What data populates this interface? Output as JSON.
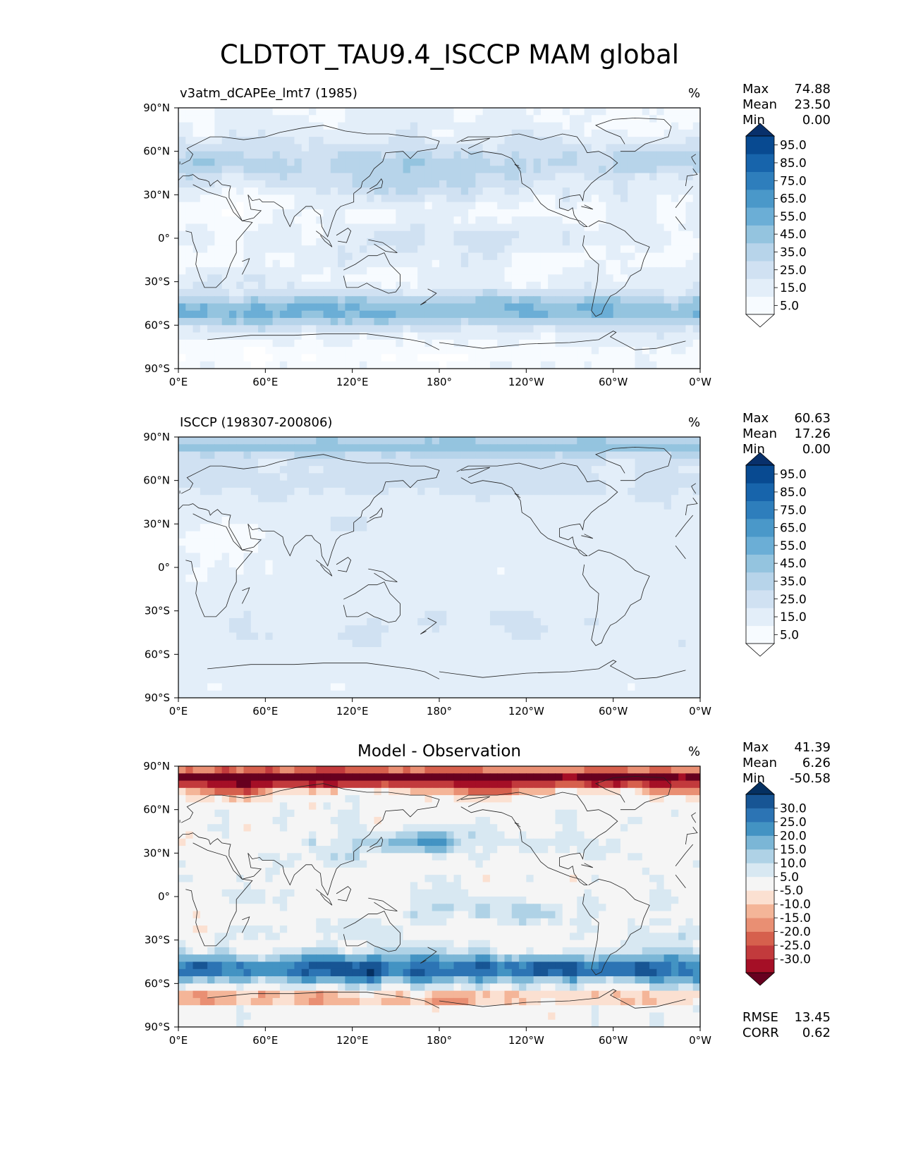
{
  "title": "CLDTOT_TAU9.4_ISCCP MAM global",
  "chart_data": [
    {
      "type": "heatmap",
      "left_title": "v3atm_dCAPEe_lmt7 (1985)",
      "units": "%",
      "xticks": [
        "0°E",
        "60°E",
        "120°E",
        "180°",
        "120°W",
        "60°W",
        "0°W"
      ],
      "yticks": [
        "90°N",
        "60°N",
        "30°N",
        "0°",
        "30°S",
        "60°S",
        "90°S"
      ],
      "xlim": [
        0,
        360
      ],
      "ylim": [
        -90,
        90
      ],
      "stats": [
        {
          "label": "Max",
          "value": "74.88"
        },
        {
          "label": "Mean",
          "value": "23.50"
        },
        {
          "label": "Min",
          "value": "0.00"
        }
      ],
      "colorbar": {
        "colormap": "Blues",
        "extend": "both",
        "levels": [
          0,
          10,
          20,
          30,
          40,
          50,
          60,
          70,
          80,
          90,
          100
        ],
        "tick_labels": [
          "5.0",
          "15.0",
          "25.0",
          "35.0",
          "45.0",
          "55.0",
          "65.0",
          "75.0",
          "85.0",
          "95.0"
        ],
        "colors": [
          "#f7fbff",
          "#e3eef9",
          "#d0e1f2",
          "#b7d4ea",
          "#94c4df",
          "#6baed6",
          "#4a98c9",
          "#2e7ebc",
          "#1764ab",
          "#084a91"
        ],
        "under_color": "#ffffff",
        "over_color": "#08306b"
      }
    },
    {
      "type": "heatmap",
      "left_title": "ISCCP (198307-200806)",
      "units": "%",
      "xticks": [
        "0°E",
        "60°E",
        "120°E",
        "180°",
        "120°W",
        "60°W",
        "0°W"
      ],
      "yticks": [
        "90°N",
        "60°N",
        "30°N",
        "0°",
        "30°S",
        "60°S",
        "90°S"
      ],
      "xlim": [
        0,
        360
      ],
      "ylim": [
        -90,
        90
      ],
      "stats": [
        {
          "label": "Max",
          "value": "60.63"
        },
        {
          "label": "Mean",
          "value": "17.26"
        },
        {
          "label": "Min",
          "value": "0.00"
        }
      ],
      "colorbar": {
        "colormap": "Blues",
        "extend": "both",
        "levels": [
          0,
          10,
          20,
          30,
          40,
          50,
          60,
          70,
          80,
          90,
          100
        ],
        "tick_labels": [
          "5.0",
          "15.0",
          "25.0",
          "35.0",
          "45.0",
          "55.0",
          "65.0",
          "75.0",
          "85.0",
          "95.0"
        ],
        "colors": [
          "#f7fbff",
          "#e3eef9",
          "#d0e1f2",
          "#b7d4ea",
          "#94c4df",
          "#6baed6",
          "#4a98c9",
          "#2e7ebc",
          "#1764ab",
          "#084a91"
        ],
        "under_color": "#ffffff",
        "over_color": "#08306b"
      }
    },
    {
      "type": "heatmap",
      "center_title": "Model - Observation",
      "units": "%",
      "xticks": [
        "0°E",
        "60°E",
        "120°E",
        "180°",
        "120°W",
        "60°W",
        "0°W"
      ],
      "yticks": [
        "90°N",
        "60°N",
        "30°N",
        "0°",
        "30°S",
        "60°S",
        "90°S"
      ],
      "xlim": [
        0,
        360
      ],
      "ylim": [
        -90,
        90
      ],
      "stats": [
        {
          "label": "Max",
          "value": "41.39"
        },
        {
          "label": "Mean",
          "value": "6.26"
        },
        {
          "label": "Min",
          "value": "-50.58"
        }
      ],
      "bottom_stats": [
        {
          "label": "RMSE",
          "value": "13.45"
        },
        {
          "label": "CORR",
          "value": "0.62"
        }
      ],
      "colorbar": {
        "colormap": "RdBu",
        "extend": "both",
        "levels": [
          -35,
          -30,
          -25,
          -20,
          -15,
          -10,
          -5,
          5,
          10,
          15,
          20,
          25,
          30,
          35
        ],
        "tick_labels": [
          "-30.0",
          "-25.0",
          "-20.0",
          "-15.0",
          "-10.0",
          "-5.0",
          "5.0",
          "10.0",
          "15.0",
          "20.0",
          "25.0",
          "30.0"
        ],
        "colors": [
          "#a50f26",
          "#c23a3c",
          "#d6604d",
          "#e98f73",
          "#f4b598",
          "#fbe0d1",
          "#f5f5f5",
          "#d8e8f2",
          "#afd2e6",
          "#7bb6d6",
          "#4393c3",
          "#2c74b4",
          "#175594"
        ],
        "under_color": "#67001f",
        "over_color": "#053061"
      }
    }
  ]
}
